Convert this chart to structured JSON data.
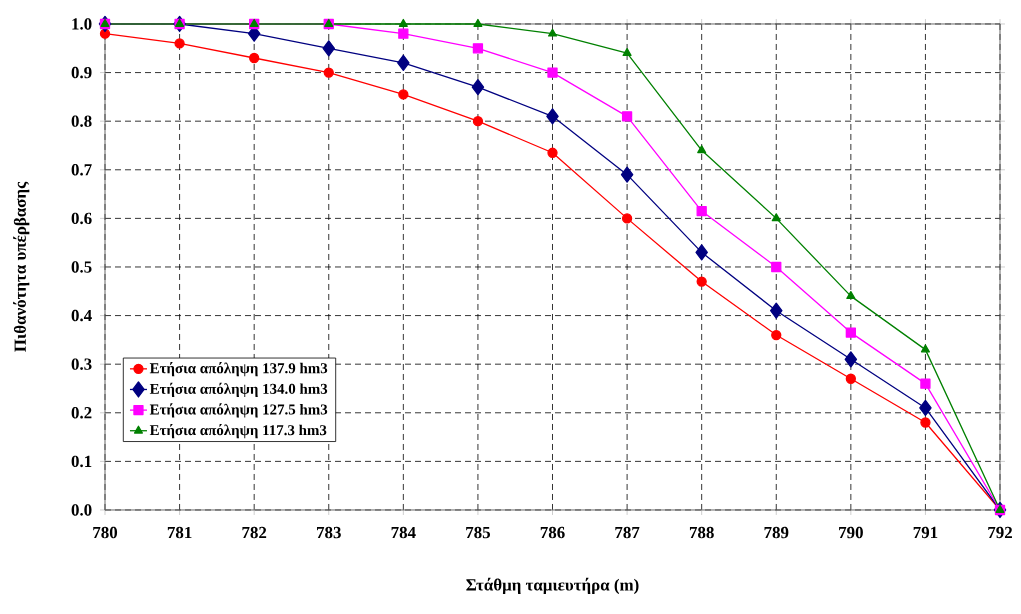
{
  "chart_data": {
    "type": "line",
    "xlabel": "Στάθμη ταμιευτήρα (m)",
    "ylabel": "Πιθανότητα υπέρβασης",
    "x": [
      780,
      781,
      782,
      783,
      784,
      785,
      786,
      787,
      788,
      789,
      790,
      791,
      792
    ],
    "series": [
      {
        "name": "Ετήσια απόληψη 137.9 hm3",
        "color": "#ff0000",
        "marker": "circle",
        "values": [
          0.98,
          0.96,
          0.93,
          0.9,
          0.855,
          0.8,
          0.735,
          0.6,
          0.47,
          0.36,
          0.27,
          0.18,
          0.0
        ]
      },
      {
        "name": "Ετήσια απόληψη 134.0 hm3",
        "color": "#000080",
        "marker": "diamond",
        "values": [
          1.0,
          1.0,
          0.98,
          0.95,
          0.92,
          0.87,
          0.81,
          0.69,
          0.53,
          0.41,
          0.31,
          0.21,
          0.0
        ]
      },
      {
        "name": "Ετήσια απόληψη 127.5 hm3",
        "color": "#ff00ff",
        "marker": "square",
        "values": [
          1.0,
          1.0,
          1.0,
          1.0,
          0.98,
          0.95,
          0.9,
          0.81,
          0.615,
          0.5,
          0.365,
          0.26,
          0.0
        ]
      },
      {
        "name": "Ετήσια απόληψη 117.3 hm3",
        "color": "#008000",
        "marker": "triangle",
        "values": [
          1.0,
          1.0,
          1.0,
          1.0,
          1.0,
          1.0,
          0.98,
          0.94,
          0.74,
          0.6,
          0.44,
          0.33,
          0.0
        ]
      }
    ],
    "xlim": [
      780,
      792
    ],
    "xticks": [
      780,
      781,
      782,
      783,
      784,
      785,
      786,
      787,
      788,
      789,
      790,
      791,
      792
    ],
    "ylim": [
      0,
      1
    ],
    "yticks": [
      {
        "value": 0,
        "label": "0.0"
      },
      {
        "value": 0.1,
        "label": "0.1"
      },
      {
        "value": 0.2,
        "label": "0.2"
      },
      {
        "value": 0.3,
        "label": "0.3"
      },
      {
        "value": 0.4,
        "label": "0.4"
      },
      {
        "value": 0.5,
        "label": "0.5"
      },
      {
        "value": 0.6,
        "label": "0.6"
      },
      {
        "value": 0.7,
        "label": "0.7"
      },
      {
        "value": 0.8,
        "label": "0.8"
      },
      {
        "value": 0.9,
        "label": "0.9"
      },
      {
        "value": 1,
        "label": "1.0"
      }
    ],
    "grid": true,
    "legend": "bottom left",
    "line_style": "solid"
  }
}
